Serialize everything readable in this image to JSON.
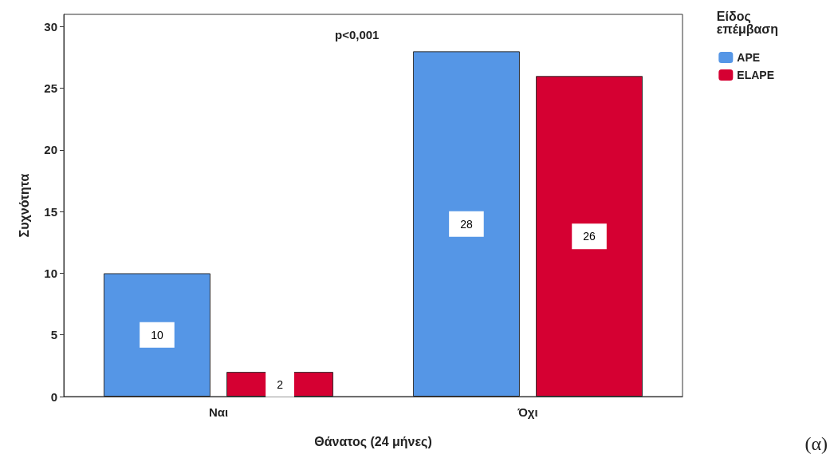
{
  "chart_data": {
    "type": "bar",
    "categories": [
      "Ναι",
      "Όχι"
    ],
    "series": [
      {
        "name": "APE",
        "color": "#5596e6",
        "values": [
          10,
          28
        ]
      },
      {
        "name": "ELAPE",
        "color": "#d50032",
        "values": [
          2,
          26
        ]
      }
    ],
    "xlabel": "Θάνατος (24 μήνες)",
    "ylabel": "Συχνότητα",
    "legend_title": "Είδος\nεπέμβαση",
    "legend": "top right",
    "ylim": [
      0,
      31
    ],
    "yticks": [
      0,
      5,
      10,
      15,
      20,
      25,
      30
    ],
    "grid": false,
    "data_labels": true,
    "annotations": [
      "p<0,001",
      "(α)"
    ]
  }
}
